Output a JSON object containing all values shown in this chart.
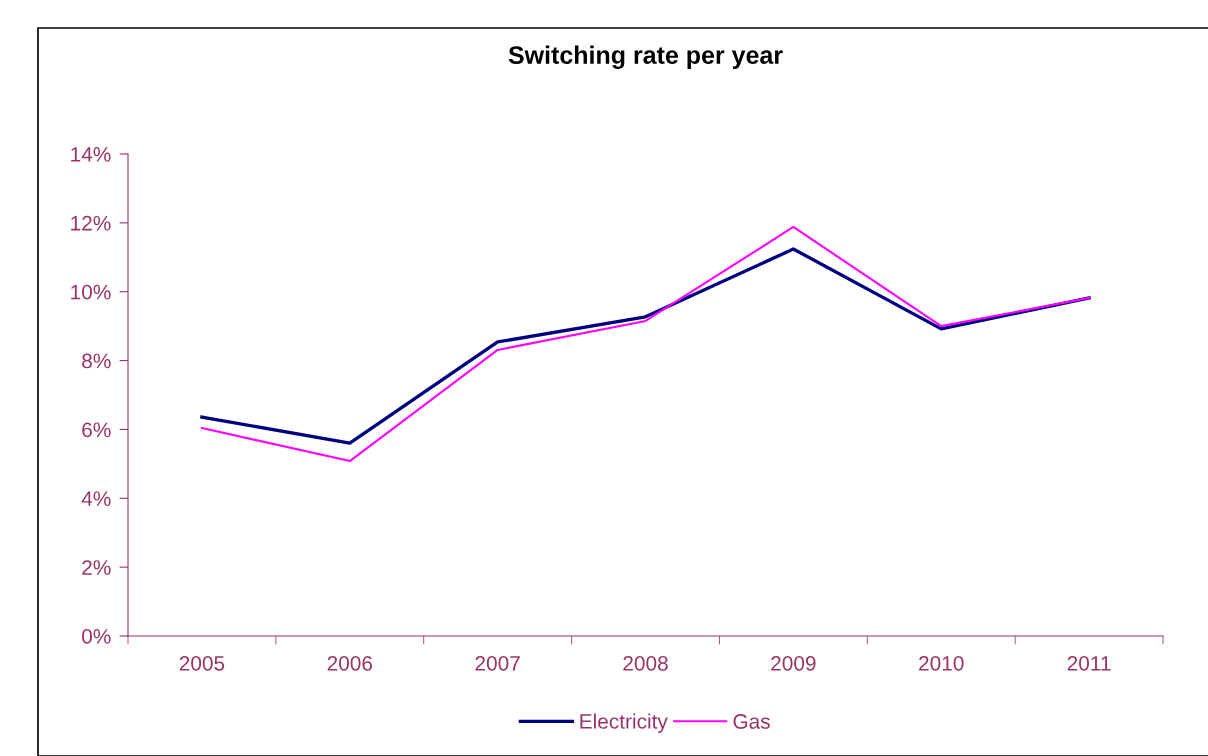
{
  "chart_data": {
    "type": "line",
    "title": "Switching rate per year",
    "categories": [
      "2005",
      "2006",
      "2007",
      "2008",
      "2009",
      "2010",
      "2011"
    ],
    "series": [
      {
        "name": "Electricity",
        "color": "#000080",
        "values": [
          6.36,
          5.6,
          8.54,
          9.27,
          11.24,
          8.92,
          9.82
        ]
      },
      {
        "name": "Gas",
        "color": "#ff00ff",
        "values": [
          6.04,
          5.08,
          8.31,
          9.15,
          11.88,
          9.0,
          9.82
        ]
      }
    ],
    "ylim": [
      0,
      14
    ],
    "yticks": [
      {
        "value": 0,
        "label": "0%"
      },
      {
        "value": 2,
        "label": "2%"
      },
      {
        "value": 4,
        "label": "4%"
      },
      {
        "value": 6,
        "label": "6%"
      },
      {
        "value": 8,
        "label": "8%"
      },
      {
        "value": 10,
        "label": "10%"
      },
      {
        "value": 12,
        "label": "12%"
      },
      {
        "value": 14,
        "label": "14%"
      }
    ],
    "grid": false,
    "legend": "bottom",
    "marker": "none",
    "line_style": "solid"
  }
}
